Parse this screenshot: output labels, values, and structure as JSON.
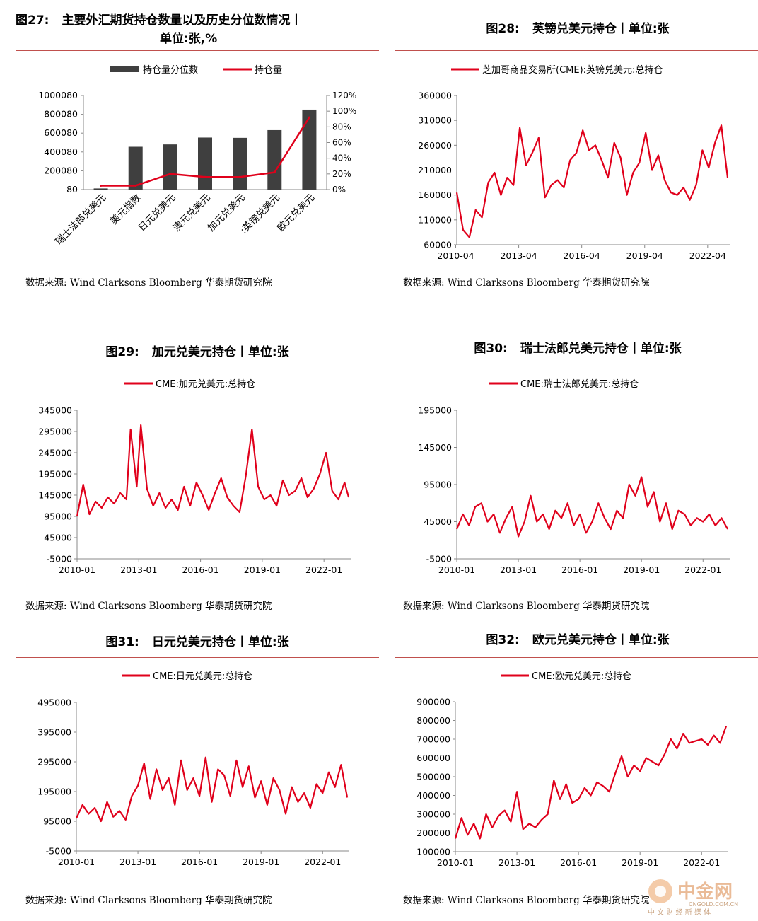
{
  "source_text": "数据来源:  Wind Clarksons Bloomberg 华泰期货研究院",
  "watermark": {
    "name": "中金网",
    "url": "CNGOLD.COM.CN",
    "tagline": "中 文 财 经 新 媒 体"
  },
  "colors": {
    "red": "#e0001b",
    "bar": "#3f3f3f",
    "rule": "#c0504d"
  },
  "figures": [
    {
      "num": "图27:",
      "title_l1": "主要外汇期货持仓数量以及历史分位数情况丨",
      "title_l2": "单位:张,%"
    },
    {
      "num": "图28:",
      "title": "英镑兑美元持仓丨单位:张"
    },
    {
      "num": "图29:",
      "title": "加元兑美元持仓丨单位:张"
    },
    {
      "num": "图30:",
      "title": "瑞士法郎兑美元持仓丨单位:张"
    },
    {
      "num": "图31:",
      "title": "日元兑美元持仓丨单位:张"
    },
    {
      "num": "图32:",
      "title": "欧元兑美元持仓丨单位:张"
    }
  ],
  "chart_data": [
    {
      "type": "bar",
      "categories": [
        "瑞士法郎兑美元",
        "美元指数",
        "日元兑美元",
        "澳元兑美元",
        "加元兑美元",
        ":英镑兑美元",
        "欧元兑美元"
      ],
      "series": [
        {
          "name": "持仓量分位数",
          "type": "bar",
          "axis": "left",
          "values": [
            12000,
            455000,
            480000,
            553000,
            550000,
            632000,
            850000
          ]
        },
        {
          "name": "持仓量",
          "type": "line",
          "axis": "right",
          "values": [
            5,
            5,
            20,
            16,
            16,
            22,
            92
          ]
        }
      ],
      "y_left": {
        "ticks": [
          "80",
          "200080",
          "400080",
          "600080",
          "800080",
          "1000080"
        ],
        "range": [
          80,
          1000080
        ]
      },
      "y_right": {
        "ticks": [
          "0%",
          "20%",
          "40%",
          "60%",
          "80%",
          "100%",
          "120%"
        ],
        "range": [
          0,
          120
        ]
      }
    },
    {
      "type": "line",
      "legend": "芝加哥商品交易所(CME):英镑兑美元:总持仓",
      "x_ticks": [
        "2010-04",
        "2013-04",
        "2016-04",
        "2019-04",
        "2022-04"
      ],
      "x_range": [
        2010.3,
        2023.3
      ],
      "y_ticks": [
        "60000",
        "110000",
        "160000",
        "210000",
        "260000",
        "310000",
        "360000"
      ],
      "y_range": [
        60000,
        360000
      ],
      "x": [
        2010.3,
        2010.6,
        2010.9,
        2011.2,
        2011.5,
        2011.8,
        2012.1,
        2012.4,
        2012.7,
        2013.0,
        2013.3,
        2013.6,
        2013.9,
        2014.2,
        2014.5,
        2014.8,
        2015.1,
        2015.4,
        2015.7,
        2016.0,
        2016.3,
        2016.6,
        2016.9,
        2017.2,
        2017.5,
        2017.8,
        2018.1,
        2018.4,
        2018.7,
        2019.0,
        2019.3,
        2019.6,
        2019.9,
        2020.2,
        2020.5,
        2020.8,
        2021.1,
        2021.4,
        2021.7,
        2022.0,
        2022.3,
        2022.6,
        2022.9,
        2023.2
      ],
      "values": [
        165000,
        90000,
        75000,
        130000,
        115000,
        185000,
        205000,
        160000,
        195000,
        180000,
        295000,
        220000,
        245000,
        275000,
        155000,
        180000,
        190000,
        175000,
        230000,
        245000,
        290000,
        250000,
        260000,
        230000,
        195000,
        265000,
        235000,
        160000,
        205000,
        225000,
        285000,
        210000,
        240000,
        190000,
        165000,
        160000,
        175000,
        150000,
        180000,
        250000,
        215000,
        265000,
        300000,
        195000
      ]
    },
    {
      "type": "line",
      "legend": "CME:加元兑美元:总持仓",
      "x_ticks": [
        "2010-01",
        "2013-01",
        "2016-01",
        "2019-01",
        "2022-01"
      ],
      "x_range": [
        2010.0,
        2023.3
      ],
      "y_ticks": [
        "-5000",
        "45000",
        "95000",
        "145000",
        "195000",
        "245000",
        "295000",
        "345000"
      ],
      "y_range": [
        -5000,
        345000
      ],
      "x": [
        2010.0,
        2010.3,
        2010.6,
        2010.9,
        2011.2,
        2011.5,
        2011.8,
        2012.1,
        2012.4,
        2012.6,
        2012.9,
        2013.1,
        2013.4,
        2013.7,
        2014.0,
        2014.3,
        2014.6,
        2014.9,
        2015.2,
        2015.5,
        2015.8,
        2016.1,
        2016.4,
        2016.7,
        2017.0,
        2017.3,
        2017.6,
        2017.9,
        2018.2,
        2018.5,
        2018.8,
        2019.1,
        2019.4,
        2019.7,
        2020.0,
        2020.3,
        2020.6,
        2020.9,
        2021.2,
        2021.5,
        2021.8,
        2022.1,
        2022.4,
        2022.7,
        2023.0,
        2023.2
      ],
      "values": [
        95000,
        170000,
        100000,
        130000,
        115000,
        140000,
        125000,
        150000,
        135000,
        300000,
        165000,
        310000,
        160000,
        120000,
        150000,
        115000,
        135000,
        110000,
        165000,
        120000,
        175000,
        145000,
        110000,
        150000,
        185000,
        140000,
        120000,
        105000,
        190000,
        300000,
        165000,
        135000,
        145000,
        120000,
        180000,
        145000,
        155000,
        185000,
        140000,
        160000,
        195000,
        245000,
        155000,
        135000,
        175000,
        140000
      ]
    },
    {
      "type": "line",
      "legend": "CME:瑞士法郎兑美元:总持仓",
      "x_ticks": [
        "2010-01",
        "2013-01",
        "2016-01",
        "2019-01",
        "2022-01"
      ],
      "x_range": [
        2010.0,
        2023.3
      ],
      "y_ticks": [
        "-5000",
        "45000",
        "95000",
        "145000",
        "195000"
      ],
      "y_range": [
        -5000,
        195000
      ],
      "x": [
        2010.0,
        2010.3,
        2010.6,
        2010.9,
        2011.2,
        2011.5,
        2011.8,
        2012.1,
        2012.4,
        2012.7,
        2013.0,
        2013.3,
        2013.6,
        2013.9,
        2014.2,
        2014.5,
        2014.8,
        2015.1,
        2015.4,
        2015.7,
        2016.0,
        2016.3,
        2016.6,
        2016.9,
        2017.2,
        2017.5,
        2017.8,
        2018.1,
        2018.4,
        2018.7,
        2019.0,
        2019.3,
        2019.6,
        2019.9,
        2020.2,
        2020.5,
        2020.8,
        2021.1,
        2021.4,
        2021.7,
        2022.0,
        2022.3,
        2022.6,
        2022.9,
        2023.2
      ],
      "values": [
        35000,
        55000,
        40000,
        65000,
        70000,
        45000,
        55000,
        30000,
        50000,
        65000,
        25000,
        45000,
        80000,
        45000,
        55000,
        35000,
        60000,
        50000,
        70000,
        40000,
        55000,
        30000,
        45000,
        70000,
        50000,
        35000,
        60000,
        50000,
        95000,
        80000,
        105000,
        65000,
        85000,
        45000,
        70000,
        35000,
        60000,
        55000,
        40000,
        50000,
        45000,
        55000,
        40000,
        50000,
        35000
      ]
    },
    {
      "type": "line",
      "legend": "CME:日元兑美元:总持仓",
      "x_ticks": [
        "2010-01",
        "2013-01",
        "2016-01",
        "2019-01",
        "2022-01"
      ],
      "x_range": [
        2010.0,
        2023.3
      ],
      "y_ticks": [
        "-5000",
        "95000",
        "195000",
        "295000",
        "395000",
        "495000"
      ],
      "y_range": [
        -5000,
        495000
      ],
      "x": [
        2010.0,
        2010.3,
        2010.6,
        2010.9,
        2011.2,
        2011.5,
        2011.8,
        2012.1,
        2012.4,
        2012.7,
        2013.0,
        2013.3,
        2013.6,
        2013.9,
        2014.2,
        2014.5,
        2014.8,
        2015.1,
        2015.4,
        2015.7,
        2016.0,
        2016.3,
        2016.6,
        2016.9,
        2017.2,
        2017.5,
        2017.8,
        2018.1,
        2018.4,
        2018.7,
        2019.0,
        2019.3,
        2019.6,
        2019.9,
        2020.2,
        2020.5,
        2020.8,
        2021.1,
        2021.4,
        2021.7,
        2022.0,
        2022.3,
        2022.6,
        2022.9,
        2023.2
      ],
      "values": [
        105000,
        150000,
        120000,
        140000,
        95000,
        160000,
        110000,
        130000,
        100000,
        180000,
        215000,
        290000,
        170000,
        270000,
        200000,
        240000,
        150000,
        300000,
        200000,
        240000,
        180000,
        310000,
        160000,
        270000,
        250000,
        180000,
        300000,
        210000,
        280000,
        175000,
        230000,
        150000,
        240000,
        200000,
        120000,
        210000,
        160000,
        190000,
        140000,
        220000,
        190000,
        260000,
        210000,
        285000,
        175000
      ]
    },
    {
      "type": "line",
      "legend": "CME:欧元兑美元:总持仓",
      "x_ticks": [
        "2010-01",
        "2013-01",
        "2016-01",
        "2019-01",
        "2022-01"
      ],
      "x_range": [
        2010.0,
        2023.3
      ],
      "y_ticks": [
        "100000",
        "200000",
        "300000",
        "400000",
        "500000",
        "600000",
        "700000",
        "800000",
        "900000"
      ],
      "y_range": [
        100000,
        900000
      ],
      "x": [
        2010.0,
        2010.3,
        2010.6,
        2010.9,
        2011.2,
        2011.5,
        2011.8,
        2012.1,
        2012.4,
        2012.7,
        2013.0,
        2013.3,
        2013.6,
        2013.9,
        2014.2,
        2014.5,
        2014.8,
        2015.1,
        2015.4,
        2015.7,
        2016.0,
        2016.3,
        2016.6,
        2016.9,
        2017.2,
        2017.5,
        2017.8,
        2018.1,
        2018.4,
        2018.7,
        2019.0,
        2019.3,
        2019.6,
        2019.9,
        2020.2,
        2020.5,
        2020.8,
        2021.1,
        2021.4,
        2021.7,
        2022.0,
        2022.3,
        2022.6,
        2022.9,
        2023.2
      ],
      "values": [
        170000,
        280000,
        190000,
        250000,
        170000,
        300000,
        230000,
        290000,
        320000,
        260000,
        420000,
        220000,
        250000,
        230000,
        270000,
        300000,
        480000,
        380000,
        460000,
        360000,
        380000,
        440000,
        400000,
        470000,
        450000,
        420000,
        520000,
        610000,
        500000,
        560000,
        530000,
        600000,
        580000,
        560000,
        620000,
        700000,
        650000,
        730000,
        680000,
        690000,
        700000,
        670000,
        720000,
        680000,
        770000
      ]
    }
  ]
}
